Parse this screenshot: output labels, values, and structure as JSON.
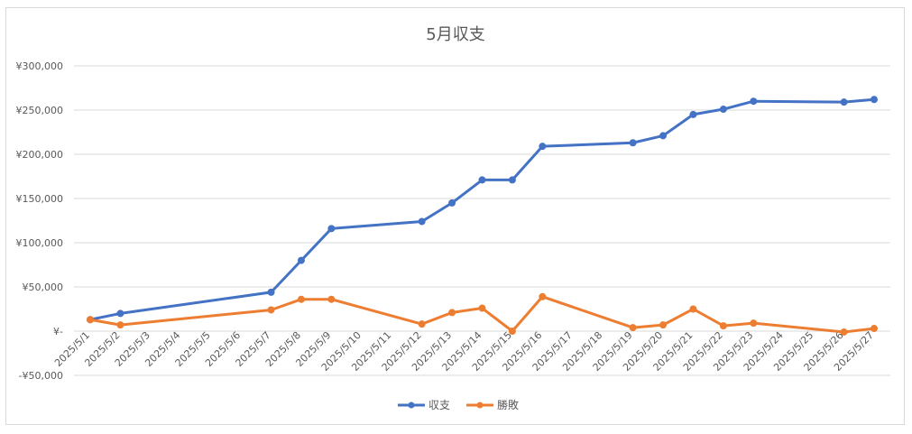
{
  "chart_data": {
    "type": "line",
    "title": "5月収支",
    "xlabel": "",
    "ylabel": "",
    "ylim": [
      -50000,
      300000
    ],
    "yticks": [
      300000,
      250000,
      200000,
      150000,
      100000,
      50000,
      0,
      -50000
    ],
    "ytick_labels": [
      "¥300,000",
      "¥250,000",
      "¥200,000",
      "¥150,000",
      "¥100,000",
      "¥50,000",
      "¥-",
      "-¥50,000"
    ],
    "categories": [
      "2025/5/1",
      "2025/5/2",
      "2025/5/3",
      "2025/5/4",
      "2025/5/5",
      "2025/5/6",
      "2025/5/7",
      "2025/5/8",
      "2025/5/9",
      "2025/5/10",
      "2025/5/11",
      "2025/5/12",
      "2025/5/13",
      "2025/5/14",
      "2025/5/15",
      "2025/5/16",
      "2025/5/17",
      "2025/5/18",
      "2025/5/19",
      "2025/5/20",
      "2025/5/21",
      "2025/5/22",
      "2025/5/23",
      "2025/5/24",
      "2025/5/25",
      "2025/5/26",
      "2025/5/27"
    ],
    "grid": true,
    "legend_position": "bottom",
    "series": [
      {
        "name": "収支",
        "color": "#4472c4",
        "points": [
          {
            "x": "2025/5/1",
            "y": 13000
          },
          {
            "x": "2025/5/2",
            "y": 20000
          },
          {
            "x": "2025/5/7",
            "y": 44000
          },
          {
            "x": "2025/5/8",
            "y": 80000
          },
          {
            "x": "2025/5/9",
            "y": 116000
          },
          {
            "x": "2025/5/12",
            "y": 124000
          },
          {
            "x": "2025/5/13",
            "y": 145000
          },
          {
            "x": "2025/5/14",
            "y": 171000
          },
          {
            "x": "2025/5/15",
            "y": 171000
          },
          {
            "x": "2025/5/16",
            "y": 209000
          },
          {
            "x": "2025/5/19",
            "y": 213000
          },
          {
            "x": "2025/5/20",
            "y": 221000
          },
          {
            "x": "2025/5/21",
            "y": 245000
          },
          {
            "x": "2025/5/22",
            "y": 251000
          },
          {
            "x": "2025/5/23",
            "y": 260000
          },
          {
            "x": "2025/5/26",
            "y": 259000
          },
          {
            "x": "2025/5/27",
            "y": 262000
          }
        ]
      },
      {
        "name": "勝敗",
        "color": "#ed7d31",
        "points": [
          {
            "x": "2025/5/1",
            "y": 13000
          },
          {
            "x": "2025/5/2",
            "y": 7000
          },
          {
            "x": "2025/5/7",
            "y": 24000
          },
          {
            "x": "2025/5/8",
            "y": 36000
          },
          {
            "x": "2025/5/9",
            "y": 36000
          },
          {
            "x": "2025/5/12",
            "y": 8000
          },
          {
            "x": "2025/5/13",
            "y": 21000
          },
          {
            "x": "2025/5/14",
            "y": 26000
          },
          {
            "x": "2025/5/15",
            "y": 0
          },
          {
            "x": "2025/5/16",
            "y": 39000
          },
          {
            "x": "2025/5/19",
            "y": 4000
          },
          {
            "x": "2025/5/20",
            "y": 7000
          },
          {
            "x": "2025/5/21",
            "y": 25000
          },
          {
            "x": "2025/5/22",
            "y": 6000
          },
          {
            "x": "2025/5/23",
            "y": 9000
          },
          {
            "x": "2025/5/26",
            "y": -1000
          },
          {
            "x": "2025/5/27",
            "y": 3000
          }
        ]
      }
    ]
  }
}
